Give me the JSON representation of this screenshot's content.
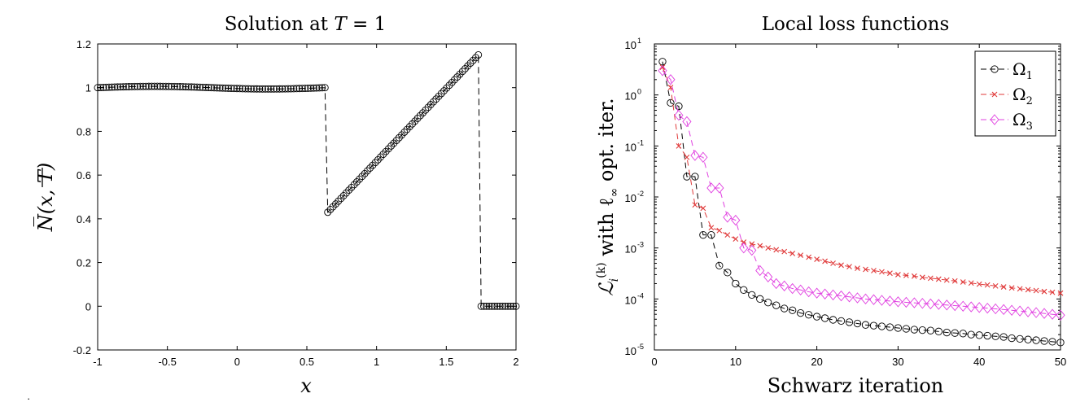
{
  "chart_data": [
    {
      "type": "line",
      "title": "Solution at T = 1",
      "xlabel": "x",
      "ylabel": "N̅(x, T)",
      "xlim": [
        -1,
        2
      ],
      "ylim": [
        -0.2,
        1.2
      ],
      "xticks": [
        "-1",
        "-0.5",
        "0",
        "0.5",
        "1",
        "1.5",
        "2"
      ],
      "yticks": [
        "-0.2",
        "0",
        "0.2",
        "0.4",
        "0.6",
        "0.8",
        "1",
        "1.2"
      ],
      "grid": false,
      "marker": "circle",
      "line_style": "dashed",
      "color": "#000000",
      "series": [
        {
          "segments": [
            {
              "x": [
                -1.0,
                0.63
              ],
              "y": [
                1.0,
                1.0
              ],
              "ripple": 0.006,
              "points": 81
            },
            {
              "x": [
                0.65,
                1.73
              ],
              "y": [
                0.43,
                1.15
              ],
              "points": 58
            },
            {
              "x": [
                1.75,
                2.0
              ],
              "y": [
                0.0,
                0.0
              ],
              "points": 14
            }
          ]
        }
      ]
    },
    {
      "type": "line",
      "title": "Local loss functions",
      "xlabel": "Schwarz iteration",
      "ylabel_parts": [
        "ℒ",
        "i",
        "(k)",
        " with ℓ",
        "∞",
        " opt. iter."
      ],
      "xlim": [
        0,
        50
      ],
      "ylim_log10": [
        -5,
        1
      ],
      "yscale": "log",
      "xticks": [
        "0",
        "10",
        "20",
        "30",
        "40",
        "50"
      ],
      "ytick_base": "10",
      "ytick_exponents": [
        "1",
        "0",
        "-1",
        "-2",
        "-3",
        "-4",
        "-5"
      ],
      "legend_position": "top-right",
      "grid": false,
      "series": [
        {
          "name_base": "Ω",
          "name_sub": "1",
          "color": "#000000",
          "marker": "circle",
          "x": [
            1,
            2,
            3,
            4,
            5,
            6,
            7,
            8,
            9,
            10,
            11,
            12,
            13,
            14,
            15,
            16,
            17,
            18,
            19,
            20,
            21,
            22,
            23,
            24,
            25,
            26,
            27,
            28,
            29,
            30,
            31,
            32,
            33,
            34,
            35,
            36,
            37,
            38,
            39,
            40,
            41,
            42,
            43,
            44,
            45,
            46,
            47,
            48,
            49,
            50
          ],
          "y": [
            4.5,
            0.7,
            0.6,
            0.025,
            0.025,
            0.0018,
            0.0018,
            0.00045,
            0.00033,
            0.0002,
            0.00015,
            0.00012,
            0.0001,
            8.5e-05,
            7.5e-05,
            6.5e-05,
            6e-05,
            5.3e-05,
            4.9e-05,
            4.5e-05,
            4.2e-05,
            3.9e-05,
            3.7e-05,
            3.5e-05,
            3.3e-05,
            3.1e-05,
            3e-05,
            2.9e-05,
            2.8e-05,
            2.7e-05,
            2.6e-05,
            2.5e-05,
            2.45e-05,
            2.4e-05,
            2.3e-05,
            2.2e-05,
            2.15e-05,
            2.1e-05,
            2e-05,
            1.95e-05,
            1.9e-05,
            1.85e-05,
            1.8e-05,
            1.7e-05,
            1.65e-05,
            1.6e-05,
            1.55e-05,
            1.5e-05,
            1.45e-05,
            1.4e-05
          ]
        },
        {
          "name_base": "Ω",
          "name_sub": "2",
          "color": "#e03a3a",
          "marker": "x",
          "x": [
            1,
            2,
            3,
            4,
            5,
            6,
            7,
            8,
            9,
            10,
            11,
            12,
            13,
            14,
            15,
            16,
            17,
            18,
            19,
            20,
            21,
            22,
            23,
            24,
            25,
            26,
            27,
            28,
            29,
            30,
            31,
            32,
            33,
            34,
            35,
            36,
            37,
            38,
            39,
            40,
            41,
            42,
            43,
            44,
            45,
            46,
            47,
            48,
            49,
            50
          ],
          "y": [
            3.5,
            1.4,
            0.1,
            0.06,
            0.007,
            0.006,
            0.0025,
            0.0022,
            0.0018,
            0.0015,
            0.0013,
            0.0012,
            0.0011,
            0.001,
            0.00092,
            0.00085,
            0.00078,
            0.00072,
            0.00066,
            0.0006,
            0.00055,
            0.0005,
            0.00046,
            0.00043,
            0.0004,
            0.00038,
            0.00036,
            0.00034,
            0.00032,
            0.0003,
            0.00029,
            0.00028,
            0.000265,
            0.000255,
            0.000245,
            0.000235,
            0.000225,
            0.000215,
            0.000205,
            0.000195,
            0.000188,
            0.00018,
            0.000172,
            0.000165,
            0.000158,
            0.000152,
            0.000146,
            0.00014,
            0.000135,
            0.00013
          ]
        },
        {
          "name_base": "Ω",
          "name_sub": "3",
          "color": "#e040e0",
          "marker": "diamond",
          "x": [
            1,
            2,
            3,
            4,
            5,
            6,
            7,
            8,
            9,
            10,
            11,
            12,
            13,
            14,
            15,
            16,
            17,
            18,
            19,
            20,
            21,
            22,
            23,
            24,
            25,
            26,
            27,
            28,
            29,
            30,
            31,
            32,
            33,
            34,
            35,
            36,
            37,
            38,
            39,
            40,
            41,
            42,
            43,
            44,
            45,
            46,
            47,
            48,
            49,
            50
          ],
          "y": [
            3.0,
            2.0,
            0.4,
            0.3,
            0.065,
            0.06,
            0.015,
            0.015,
            0.004,
            0.0035,
            0.001,
            0.0009,
            0.00036,
            0.00027,
            0.0002,
            0.00018,
            0.00016,
            0.00015,
            0.000138,
            0.00013,
            0.000125,
            0.00012,
            0.000115,
            0.00011,
            0.000105,
            0.0001,
            9.7e-05,
            9.4e-05,
            9.1e-05,
            8.8e-05,
            8.6e-05,
            8.4e-05,
            8.2e-05,
            8e-05,
            7.8e-05,
            7.6e-05,
            7.4e-05,
            7.2e-05,
            7e-05,
            6.8e-05,
            6.6e-05,
            6.4e-05,
            6.2e-05,
            6e-05,
            5.8e-05,
            5.6e-05,
            5.4e-05,
            5.2e-05,
            5e-05,
            4.8e-05
          ]
        }
      ]
    }
  ]
}
